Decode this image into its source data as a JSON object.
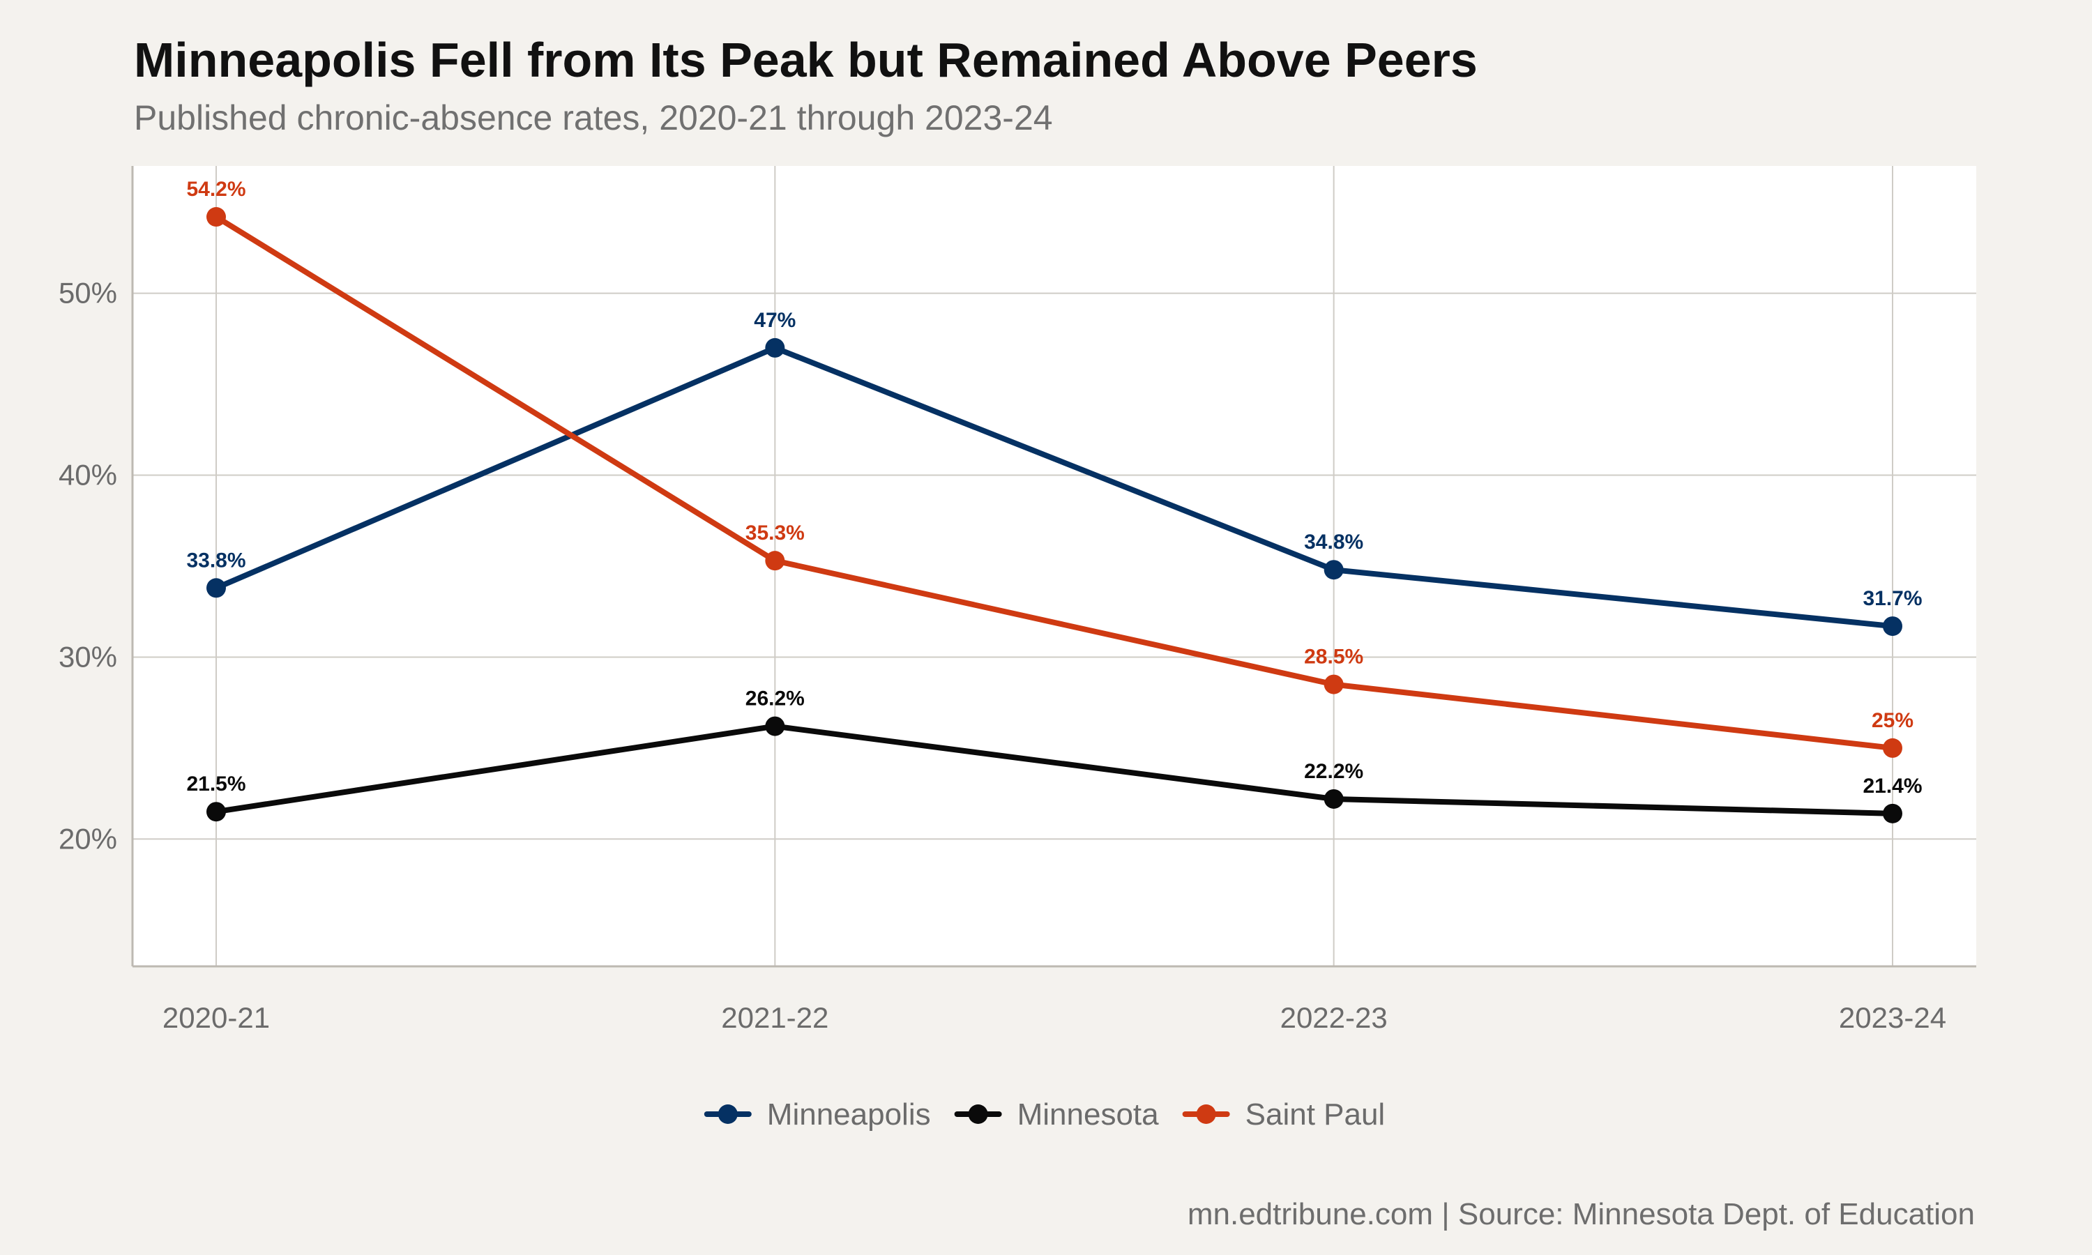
{
  "chart_data": {
    "type": "line",
    "title": "Minneapolis Fell from Its Peak but Remained Above Peers",
    "subtitle": "Published chronic-absence rates, 2020-21 through 2023-24",
    "caption": "mn.edtribune.com | Source: Minnesota Dept. of Education",
    "categories": [
      "2020-21",
      "2021-22",
      "2022-23",
      "2023-24"
    ],
    "ylim": [
      13,
      57
    ],
    "y_ticks": [
      20,
      30,
      40,
      50
    ],
    "y_tick_labels": [
      "20%",
      "30%",
      "40%",
      "50%"
    ],
    "grid": true,
    "legend_position": "bottom",
    "series": [
      {
        "name": "Minneapolis",
        "color": "#053163",
        "values": [
          33.8,
          47,
          34.8,
          31.7
        ],
        "labels": [
          "33.8%",
          "47%",
          "34.8%",
          "31.7%"
        ]
      },
      {
        "name": "Minnesota",
        "color": "#0a0a0a",
        "values": [
          21.5,
          26.2,
          22.2,
          21.4
        ],
        "labels": [
          "21.5%",
          "26.2%",
          "22.2%",
          "21.4%"
        ]
      },
      {
        "name": "Saint Paul",
        "color": "#cf3a12",
        "values": [
          54.2,
          35.3,
          28.5,
          25
        ],
        "labels": [
          "54.2%",
          "35.3%",
          "28.5%",
          "25%"
        ]
      }
    ]
  }
}
